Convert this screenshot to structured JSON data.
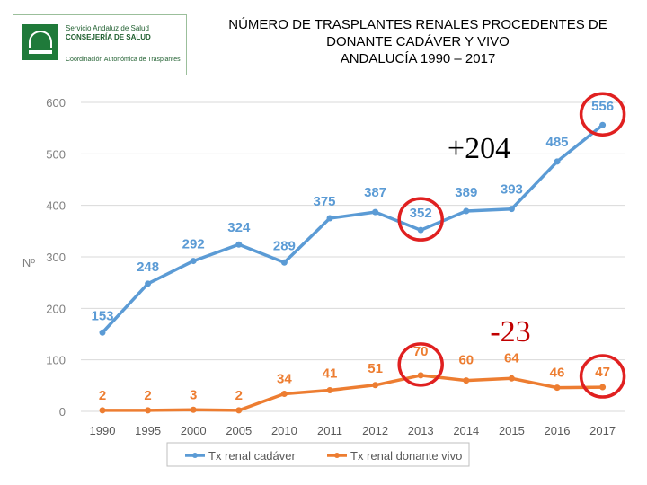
{
  "logo": {
    "line1": "Servicio Andaluz de Salud",
    "line2": "CONSEJERÍA DE SALUD",
    "line3": "Coordinación Autonómica de Trasplantes"
  },
  "title_lines": [
    "NÚMERO DE TRASPLANTES RENALES PROCEDENTES DE",
    "DONANTE  CADÁVER Y VIVO",
    "ANDALUCÍA  1990 – 2017"
  ],
  "chart_data": {
    "type": "line",
    "title": "NÚMERO DE TRASPLANTES RENALES PROCEDENTES DE DONANTE CADÁVER Y VIVO ANDALUCÍA 1990 – 2017",
    "xlabel": "",
    "ylabel": "Nº",
    "categories": [
      "1990",
      "1995",
      "2000",
      "2005",
      "2010",
      "2011",
      "2012",
      "2013",
      "2014",
      "2015",
      "2016",
      "2017"
    ],
    "ylim": [
      0,
      600
    ],
    "yticks": [
      0,
      100,
      200,
      300,
      400,
      500,
      600
    ],
    "grid": true,
    "legend_position": "bottom",
    "series": [
      {
        "name": "Tx renal cadáver",
        "color": "#5b9bd5",
        "values": [
          153,
          248,
          292,
          324,
          289,
          375,
          387,
          352,
          389,
          393,
          485,
          556
        ]
      },
      {
        "name": "Tx renal donante vivo",
        "color": "#ed7d31",
        "values": [
          2,
          2,
          3,
          2,
          34,
          41,
          51,
          70,
          60,
          64,
          46,
          47
        ]
      }
    ],
    "annotations": [
      {
        "text": "+204",
        "color": "#000000"
      },
      {
        "text": "-23",
        "color": "#c00000"
      }
    ],
    "highlight_color": "#e02020",
    "highlighted_points": [
      {
        "series": 0,
        "category": "2013"
      },
      {
        "series": 0,
        "category": "2017"
      },
      {
        "series": 1,
        "category": "2013"
      },
      {
        "series": 1,
        "category": "2017"
      }
    ]
  }
}
